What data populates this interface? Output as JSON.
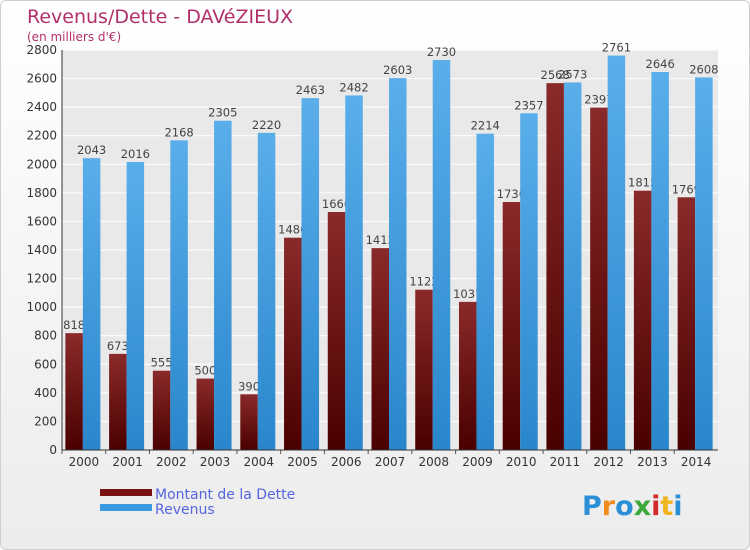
{
  "chart_data": {
    "type": "bar",
    "title": "Revenus/Dette - DAVéZIEUX",
    "subtitle": "(en milliers d'€)",
    "categories": [
      "2000",
      "2001",
      "2002",
      "2003",
      "2004",
      "2005",
      "2006",
      "2007",
      "2008",
      "2009",
      "2010",
      "2011",
      "2012",
      "2013",
      "2014"
    ],
    "series": [
      {
        "name": "Montant de la Dette",
        "color": "#7a1212",
        "values": [
          818,
          673,
          555,
          500,
          390,
          1486,
          1666,
          1413,
          1122,
          1037,
          1736,
          2568,
          2397,
          1815,
          1769
        ],
        "labels": [
          "818",
          "673",
          "555",
          "500",
          "390",
          "1486",
          "1666",
          "1413",
          "1122",
          "1037",
          "1736",
          "2568",
          "2397",
          "1815",
          "1769"
        ]
      },
      {
        "name": "Revenus",
        "color": "#3a9ae0",
        "values": [
          2043,
          2016,
          2168,
          2305,
          2220,
          2463,
          2482,
          2603,
          2730,
          2214,
          2357,
          2573,
          2761,
          2646,
          2608
        ],
        "labels": [
          "2043",
          "2016",
          "2168",
          "2305",
          "2220",
          "2463",
          "2482",
          "2603",
          "2730",
          "2214",
          "2357",
          "2573",
          "2761",
          "2646",
          "2608"
        ]
      }
    ],
    "ylim": [
      0,
      2800
    ],
    "yticks": [
      0,
      200,
      400,
      600,
      800,
      1000,
      1200,
      1400,
      1600,
      1800,
      2000,
      2200,
      2400,
      2600,
      2800
    ],
    "grid": true,
    "legend_position": "bottom-left"
  },
  "branding": {
    "logo": "Proxiti"
  }
}
